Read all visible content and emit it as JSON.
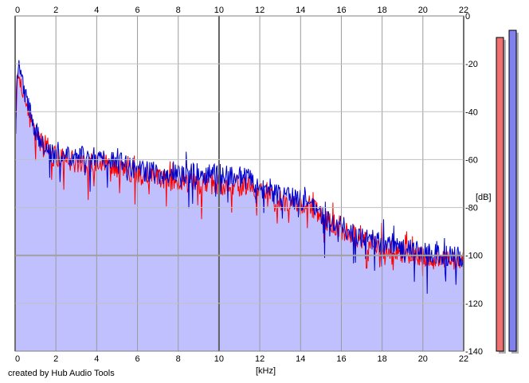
{
  "chart_data": {
    "type": "area",
    "xlabel": "[kHz]",
    "ylabel": "[dB]",
    "xlim": [
      0,
      22
    ],
    "ylim": [
      -140,
      0
    ],
    "x_ticks": [
      0,
      2,
      4,
      6,
      8,
      10,
      12,
      14,
      16,
      18,
      20,
      22
    ],
    "y_ticks": [
      0,
      -20,
      -40,
      -60,
      -80,
      -100,
      -120,
      -140
    ],
    "grid": true,
    "series": [
      {
        "color": "#ff0000",
        "x": [
          0.0,
          0.1,
          0.2,
          0.3,
          0.5,
          0.7,
          1.0,
          1.5,
          2.0,
          3.0,
          4.0,
          5.0,
          6.0,
          7.0,
          8.0,
          9.0,
          10.0,
          11.0,
          11.5,
          12.0,
          13.0,
          14.0,
          14.5,
          15.0,
          16.0,
          17.0,
          18.0,
          19.0,
          20.0,
          21.0,
          22.0
        ],
        "values": [
          -55,
          -30,
          -23,
          -28,
          -35,
          -42,
          -50,
          -56,
          -59,
          -61,
          -61,
          -63,
          -66,
          -68,
          -69,
          -70,
          -70,
          -71,
          -71,
          -74,
          -77,
          -79,
          -79,
          -84,
          -89,
          -93,
          -97,
          -99,
          -101,
          -102,
          -103
        ]
      },
      {
        "color": "#0000cc",
        "x": [
          0.0,
          0.1,
          0.2,
          0.3,
          0.5,
          0.7,
          1.0,
          1.5,
          2.0,
          3.0,
          4.0,
          5.0,
          6.0,
          7.0,
          8.0,
          9.0,
          10.0,
          11.0,
          11.5,
          12.0,
          13.0,
          14.0,
          14.5,
          15.0,
          16.0,
          17.0,
          18.0,
          19.0,
          20.0,
          21.0,
          22.0
        ],
        "values": [
          -50,
          -26,
          -20,
          -26,
          -33,
          -40,
          -48,
          -55,
          -58,
          -59,
          -59,
          -61,
          -64,
          -66,
          -66,
          -66,
          -66,
          -67,
          -68,
          -72,
          -75,
          -77,
          -78,
          -83,
          -88,
          -92,
          -95,
          -97,
          -99,
          -100,
          -101
        ]
      }
    ],
    "fill_color": "#c0c0ff",
    "level_meters": [
      {
        "color": "#ee7070",
        "value": -9
      },
      {
        "color": "#8080ee",
        "value": -6
      }
    ]
  },
  "footer": {
    "credit": "created by Hub Audio Tools"
  }
}
